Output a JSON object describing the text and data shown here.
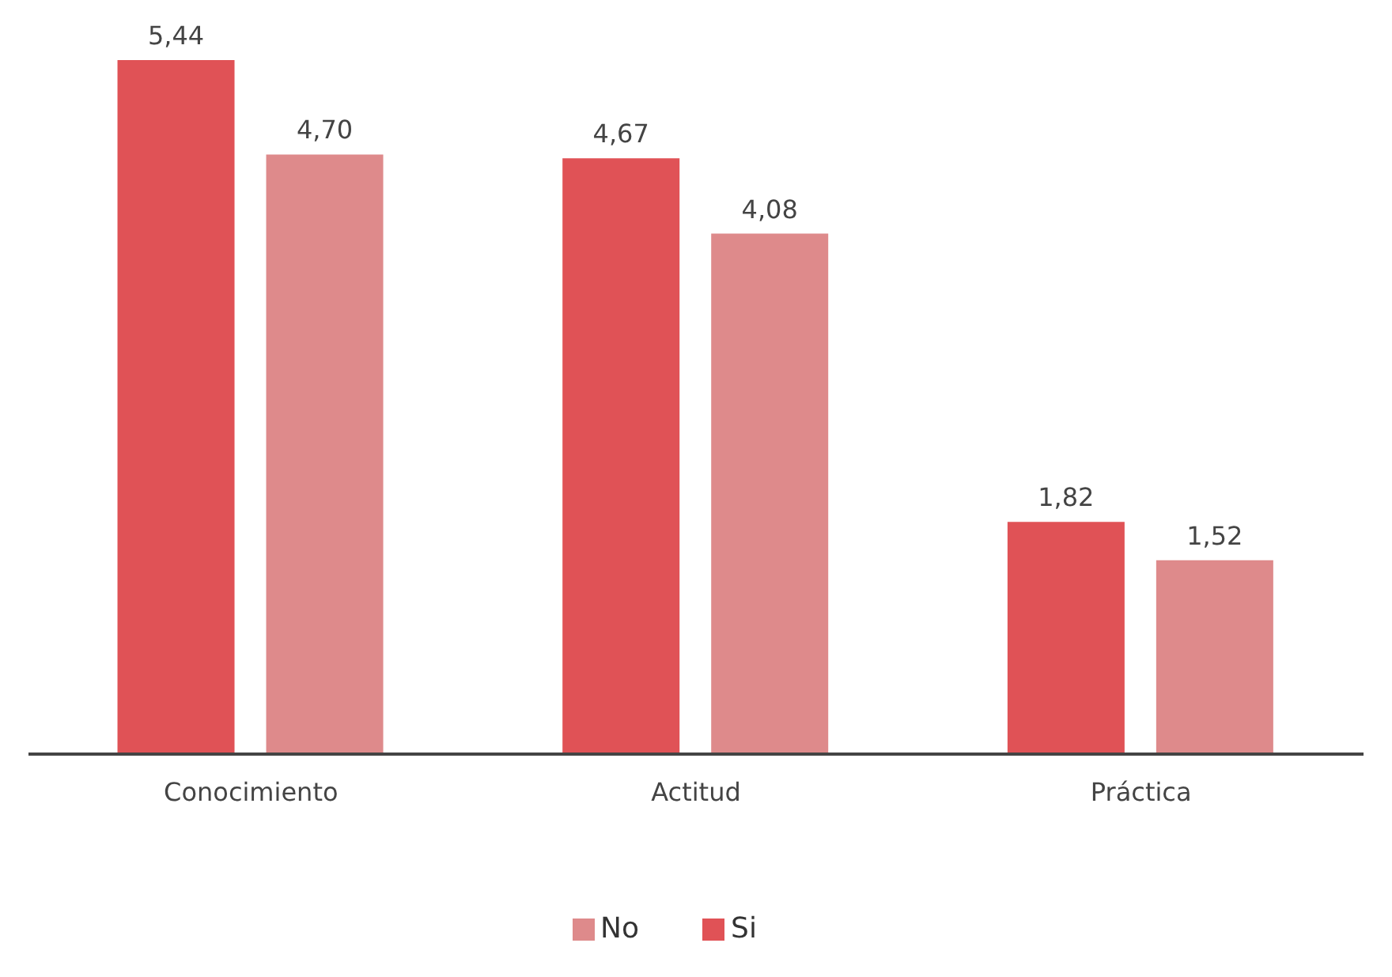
{
  "chart_data": {
    "type": "bar",
    "categories": [
      "Conocimiento",
      "Actitud",
      "Práctica"
    ],
    "series": [
      {
        "name": "Si",
        "color": "#e05256",
        "values": [
          5.44,
          4.67,
          1.82
        ],
        "value_labels": [
          "5,44",
          "4,67",
          "1,82"
        ]
      },
      {
        "name": "No",
        "color": "#de8a8b",
        "values": [
          4.7,
          4.08,
          1.52
        ],
        "value_labels": [
          "4,70",
          "4,08",
          "1,52"
        ]
      }
    ],
    "tick_labels": "x",
    "grid": false,
    "legend": "bottom"
  }
}
